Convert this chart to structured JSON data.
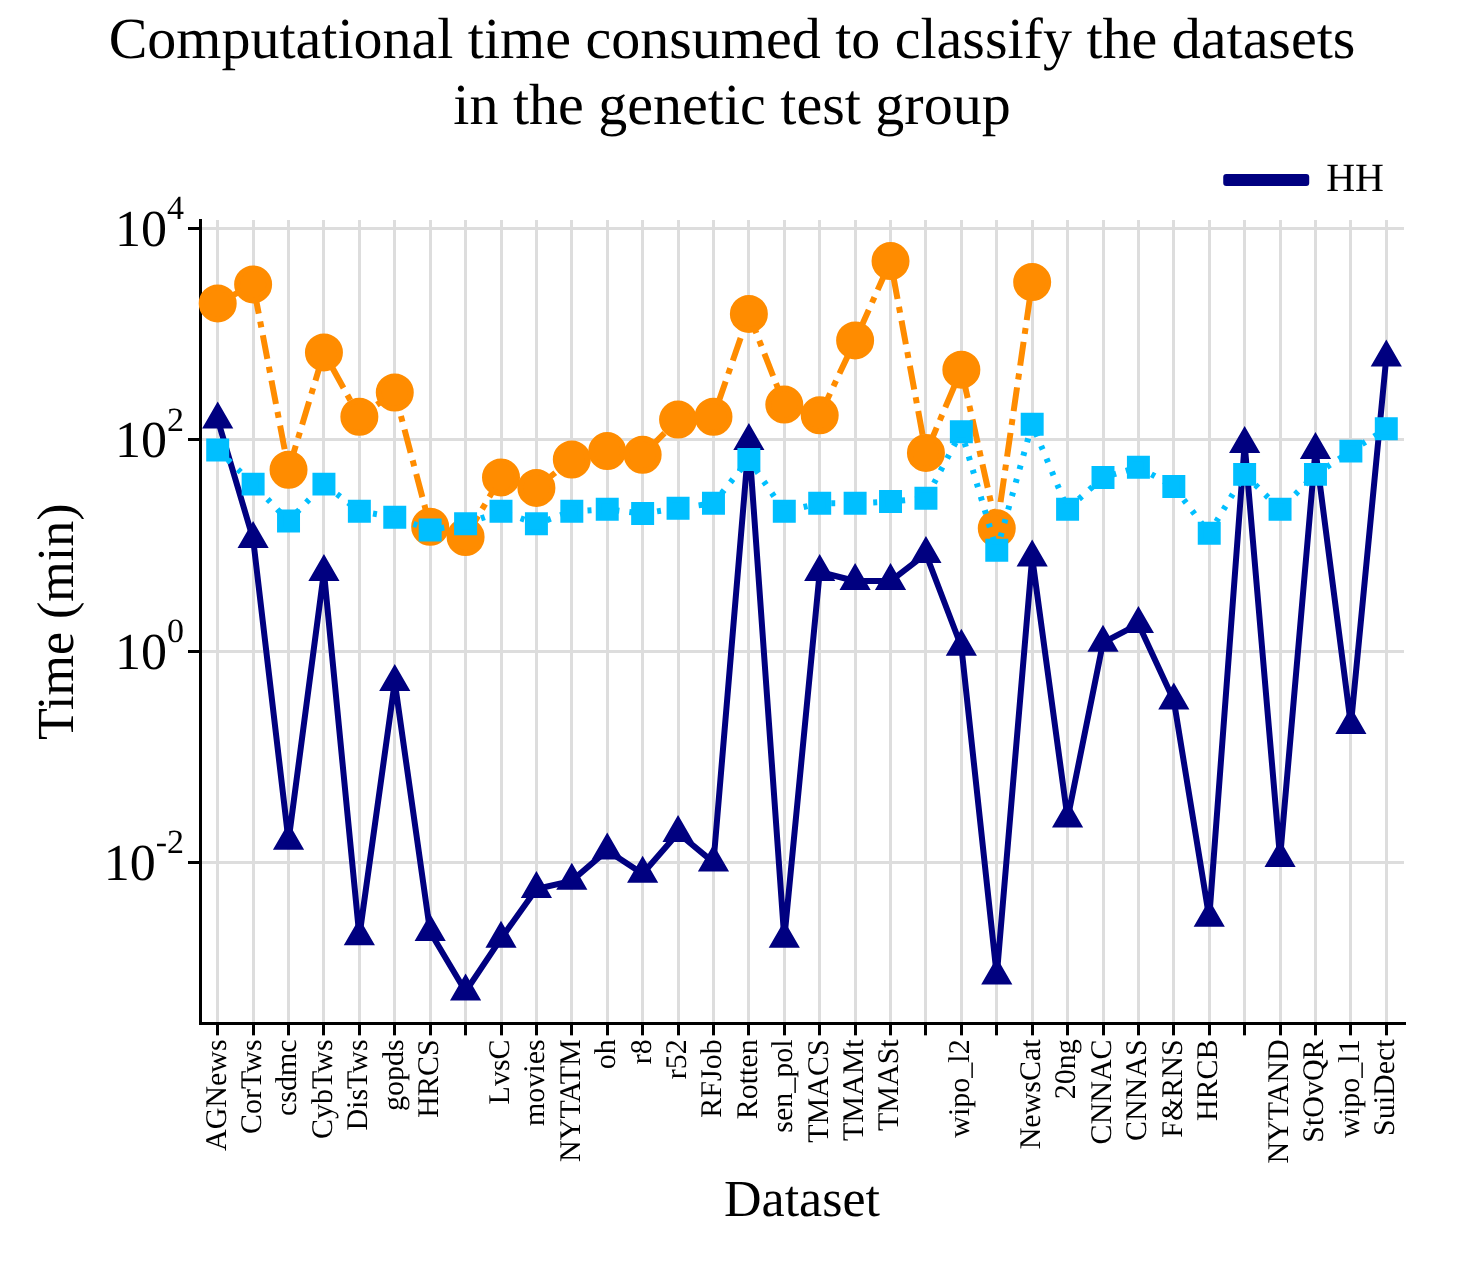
{
  "chart_data": {
    "type": "line",
    "title": "Computational time consumed to classify the datasets in the genetic test group",
    "xlabel": "Dataset",
    "ylabel": "Time (min)",
    "categories": [
      "AGNews",
      "CorTws",
      "csdmc",
      "CybTws",
      "DisTws",
      "gopds",
      "HRCS",
      null,
      "LvsC",
      "movies",
      "NYTATM",
      "oh",
      "r8",
      "r52",
      "RFJob",
      "Rotten",
      "sen_pol",
      "TMACS",
      "TMAMt",
      "TMASt",
      null,
      "wipo_l2",
      null,
      "NewsCat",
      "20ng",
      "CNNAC",
      "CNNAS",
      "F&RNS",
      "HRCB",
      null,
      "NYTAND",
      "StOvQR",
      "wipo_l1",
      "SuiDect"
    ],
    "series": [
      {
        "color": "#00bfff",
        "marker": "square",
        "line_style": "dotted",
        "values": [
          80,
          38,
          17,
          38,
          21,
          18.5,
          14,
          16,
          21,
          16,
          21,
          22,
          20,
          22.5,
          25,
          65,
          21,
          25,
          25,
          26,
          28,
          119,
          9,
          140,
          22,
          44,
          55,
          36,
          13,
          47,
          22,
          47,
          78,
          127
        ]
      },
      {
        "color": "#ff8c00",
        "marker": "circle",
        "line_style": "dashed",
        "values": [
          1950,
          2950,
          52,
          670,
          165,
          280,
          15,
          12,
          44,
          35,
          65,
          78,
          72,
          155,
          165,
          1550,
          215,
          170,
          870,
          4900,
          75,
          460,
          14.5,
          3100,
          null,
          null,
          null,
          null,
          null,
          null,
          null,
          null,
          null,
          null
        ]
      },
      {
        "name": "HH",
        "color": "#000080",
        "marker": "triangle",
        "line_style": "solid",
        "values": [
          155,
          11.5,
          0.016,
          5.6,
          0.002,
          0.51,
          0.0022,
          0.0006,
          0.0019,
          0.0056,
          0.0067,
          0.013,
          0.0078,
          0.019,
          0.01,
          97,
          0.0019,
          5.6,
          4.6,
          4.6,
          8.3,
          1.1,
          0.00085,
          7.7,
          0.026,
          1.2,
          1.8,
          0.34,
          0.003,
          91,
          0.011,
          80,
          0.2,
          600
        ]
      }
    ],
    "log": "y",
    "ylim": [
      0.0003,
      12000
    ],
    "yticks": [
      {
        "value": 0.01,
        "label": "10$^{-2}$"
      },
      {
        "value": 1,
        "label": "10$^{0}$"
      },
      {
        "value": 100,
        "label": "10$^{2}$"
      },
      {
        "value": 10000,
        "label": "10$^{4}$"
      }
    ],
    "grid": true,
    "legend": "top right"
  }
}
